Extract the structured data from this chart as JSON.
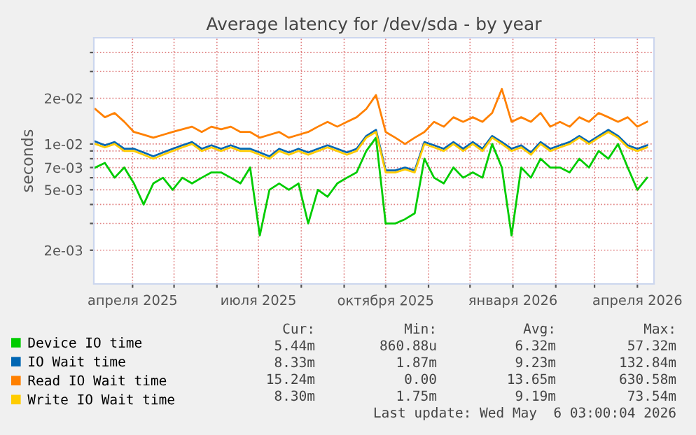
{
  "chart_data": {
    "type": "line",
    "title": "Average latency for /dev/sda - by year",
    "ylabel": "seconds",
    "log": "y",
    "grid": true,
    "legend": "bottom",
    "marker": "none",
    "line_style": "solid",
    "ylim": [
      0.0012,
      0.05
    ],
    "yticks": [
      {
        "value": 0.002,
        "label": "2e-03"
      },
      {
        "value": 0.003,
        "label": null
      },
      {
        "value": 0.004,
        "label": null
      },
      {
        "value": 0.005,
        "label": "5e-03"
      },
      {
        "value": 0.006,
        "label": null
      },
      {
        "value": 0.007,
        "label": "7e-03"
      },
      {
        "value": 0.008,
        "label": null
      },
      {
        "value": 0.009,
        "label": null
      },
      {
        "value": 0.01,
        "label": "1e-02"
      },
      {
        "value": 0.02,
        "label": "2e-02"
      },
      {
        "value": 0.03,
        "label": null
      },
      {
        "value": 0.04,
        "label": null
      }
    ],
    "xlim": [
      "2025-03-04",
      "2026-04-13"
    ],
    "xticks": [
      {
        "value": "2025-04-01",
        "label": "апреля 2025"
      },
      {
        "value": "2025-05-01",
        "label": null
      },
      {
        "value": "2025-06-01",
        "label": null
      },
      {
        "value": "2025-07-01",
        "label": "июля 2025"
      },
      {
        "value": "2025-08-01",
        "label": null
      },
      {
        "value": "2025-09-01",
        "label": null
      },
      {
        "value": "2025-10-01",
        "label": "октября 2025"
      },
      {
        "value": "2025-11-01",
        "label": null
      },
      {
        "value": "2025-12-01",
        "label": null
      },
      {
        "value": "2026-01-01",
        "label": "января 2026"
      },
      {
        "value": "2026-02-01",
        "label": null
      },
      {
        "value": "2026-03-01",
        "label": null
      },
      {
        "value": "2026-04-01",
        "label": "апреля 2026"
      }
    ],
    "x": [
      "2025-03-05",
      "2025-03-12",
      "2025-03-19",
      "2025-03-26",
      "2025-04-02",
      "2025-04-09",
      "2025-04-16",
      "2025-04-23",
      "2025-04-30",
      "2025-05-07",
      "2025-05-14",
      "2025-05-21",
      "2025-05-28",
      "2025-06-04",
      "2025-06-11",
      "2025-06-18",
      "2025-06-25",
      "2025-07-02",
      "2025-07-09",
      "2025-07-16",
      "2025-07-23",
      "2025-07-30",
      "2025-08-06",
      "2025-08-13",
      "2025-08-20",
      "2025-08-27",
      "2025-09-03",
      "2025-09-10",
      "2025-09-17",
      "2025-09-24",
      "2025-10-01",
      "2025-10-08",
      "2025-10-15",
      "2025-10-22",
      "2025-10-29",
      "2025-11-05",
      "2025-11-12",
      "2025-11-19",
      "2025-11-26",
      "2025-12-03",
      "2025-12-10",
      "2025-12-17",
      "2025-12-24",
      "2025-12-31",
      "2026-01-07",
      "2026-01-14",
      "2026-01-21",
      "2026-01-28",
      "2026-02-04",
      "2026-02-11",
      "2026-02-18",
      "2026-02-25",
      "2026-03-04",
      "2026-03-11",
      "2026-03-18",
      "2026-03-25",
      "2026-04-01",
      "2026-04-08"
    ],
    "series": [
      {
        "name": "Device IO time",
        "color": "#00cc00",
        "values": [
          0.007,
          0.0075,
          0.006,
          0.007,
          0.0055,
          0.004,
          0.0055,
          0.006,
          0.005,
          0.006,
          0.0055,
          0.006,
          0.0065,
          0.0065,
          0.006,
          0.0055,
          0.007,
          0.0025,
          0.005,
          0.0055,
          0.005,
          0.0055,
          0.003,
          0.005,
          0.0045,
          0.0055,
          0.006,
          0.0065,
          0.009,
          0.011,
          0.003,
          0.003,
          0.0032,
          0.0035,
          0.008,
          0.006,
          0.0055,
          0.007,
          0.006,
          0.0065,
          0.006,
          0.01,
          0.007,
          0.0025,
          0.007,
          0.006,
          0.008,
          0.007,
          0.007,
          0.0065,
          0.008,
          0.007,
          0.009,
          0.008,
          0.01,
          0.007,
          0.005,
          0.006
        ]
      },
      {
        "name": "IO Wait time",
        "color": "#0066b3",
        "values": [
          0.0104,
          0.0098,
          0.0103,
          0.0093,
          0.0093,
          0.0088,
          0.0083,
          0.0088,
          0.0093,
          0.0098,
          0.0103,
          0.0093,
          0.0098,
          0.0093,
          0.0098,
          0.0093,
          0.0093,
          0.0088,
          0.0083,
          0.0093,
          0.0088,
          0.0093,
          0.0088,
          0.0093,
          0.0098,
          0.0093,
          0.0088,
          0.0093,
          0.0113,
          0.0124,
          0.0067,
          0.0067,
          0.007,
          0.0067,
          0.0103,
          0.0098,
          0.0093,
          0.0103,
          0.0093,
          0.0103,
          0.0093,
          0.0113,
          0.0103,
          0.0093,
          0.0098,
          0.0088,
          0.0103,
          0.0093,
          0.0098,
          0.0103,
          0.0113,
          0.0103,
          0.0113,
          0.0124,
          0.0113,
          0.0098,
          0.0093,
          0.0098
        ]
      },
      {
        "name": "Read IO Wait time",
        "color": "#ff8000",
        "values": [
          0.017,
          0.015,
          0.016,
          0.014,
          0.012,
          0.0115,
          0.011,
          0.0115,
          0.012,
          0.0125,
          0.013,
          0.012,
          0.013,
          0.0125,
          0.013,
          0.012,
          0.012,
          0.011,
          0.0115,
          0.012,
          0.011,
          0.0115,
          0.012,
          0.013,
          0.014,
          0.013,
          0.014,
          0.015,
          0.017,
          0.021,
          0.012,
          0.011,
          0.01,
          0.011,
          0.012,
          0.014,
          0.013,
          0.015,
          0.014,
          0.015,
          0.014,
          0.016,
          0.023,
          0.014,
          0.015,
          0.014,
          0.016,
          0.013,
          0.014,
          0.013,
          0.015,
          0.014,
          0.016,
          0.015,
          0.014,
          0.015,
          0.013,
          0.014
        ]
      },
      {
        "name": "Write IO Wait time",
        "color": "#ffcc00",
        "values": [
          0.01,
          0.0095,
          0.01,
          0.009,
          0.009,
          0.0085,
          0.008,
          0.0085,
          0.009,
          0.0095,
          0.01,
          0.009,
          0.0095,
          0.009,
          0.0095,
          0.009,
          0.009,
          0.0085,
          0.008,
          0.009,
          0.0085,
          0.009,
          0.0085,
          0.009,
          0.0095,
          0.009,
          0.0085,
          0.009,
          0.011,
          0.012,
          0.0065,
          0.0065,
          0.0068,
          0.0065,
          0.01,
          0.0095,
          0.009,
          0.01,
          0.009,
          0.01,
          0.009,
          0.011,
          0.01,
          0.009,
          0.0095,
          0.0085,
          0.01,
          0.009,
          0.0095,
          0.01,
          0.011,
          0.01,
          0.011,
          0.012,
          0.011,
          0.0095,
          0.009,
          0.0095
        ]
      }
    ],
    "annotations": [
      "Cur:",
      "Min:",
      "Avg:",
      "Max:",
      "5.44m",
      "860.88u",
      "6.32m",
      "57.32m",
      "8.33m",
      "1.87m",
      "9.23m",
      "132.84m",
      "15.24m",
      "0.00",
      "13.65m",
      "630.58m",
      "8.30m",
      "1.75m",
      "9.19m",
      "73.54m",
      "Last update: Wed May  6 03:00:04 2026"
    ]
  }
}
